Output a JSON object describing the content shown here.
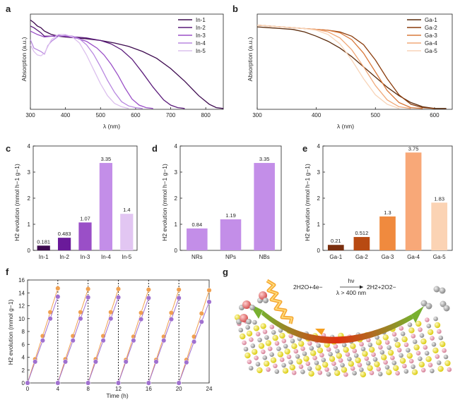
{
  "panel_letters": [
    "a",
    "b",
    "c",
    "d",
    "e",
    "f",
    "g"
  ],
  "chart_data": [
    {
      "id": "a",
      "type": "line",
      "xlabel": "λ (nm)",
      "ylabel": "Absorption (a.u.)",
      "xlim": [
        300,
        850
      ],
      "xticks": [
        300,
        400,
        500,
        600,
        700,
        800
      ],
      "ylim": [
        0,
        1.12
      ],
      "yticks_shown": false,
      "legend": "top-right",
      "series": [
        {
          "name": "In-1",
          "color": "#3d0a4f",
          "x": [
            300,
            310,
            320,
            330,
            340,
            350,
            360,
            380,
            400,
            430,
            460,
            500,
            540,
            580,
            620,
            660,
            700,
            740,
            780,
            810,
            830,
            850
          ],
          "y": [
            1.05,
            1.02,
            0.98,
            0.96,
            0.92,
            0.9,
            0.88,
            0.86,
            0.85,
            0.84,
            0.83,
            0.81,
            0.78,
            0.74,
            0.68,
            0.6,
            0.48,
            0.33,
            0.16,
            0.06,
            0.02,
            0.01
          ]
        },
        {
          "name": "In-2",
          "color": "#5a1a7a",
          "x": [
            300,
            310,
            320,
            330,
            340,
            350,
            360,
            380,
            400,
            430,
            460,
            500,
            530,
            560,
            590,
            620,
            650,
            680,
            700,
            720,
            740
          ],
          "y": [
            0.98,
            0.96,
            0.93,
            0.9,
            0.86,
            0.86,
            0.86,
            0.86,
            0.86,
            0.85,
            0.84,
            0.81,
            0.77,
            0.7,
            0.59,
            0.43,
            0.26,
            0.11,
            0.05,
            0.02,
            0.01
          ]
        },
        {
          "name": "In-3",
          "color": "#9a4fc7",
          "x": [
            300,
            320,
            340,
            360,
            380,
            400,
            430,
            460,
            490,
            510,
            530,
            550,
            570,
            590,
            610,
            630,
            650
          ],
          "y": [
            0.92,
            0.88,
            0.85,
            0.86,
            0.87,
            0.86,
            0.84,
            0.8,
            0.72,
            0.64,
            0.53,
            0.4,
            0.25,
            0.12,
            0.05,
            0.02,
            0.01
          ]
        },
        {
          "name": "In-4",
          "color": "#b988e0",
          "x": [
            300,
            310,
            320,
            330,
            340,
            350,
            360,
            380,
            400,
            420,
            440,
            460,
            480,
            500,
            520,
            540,
            560,
            580,
            600,
            620
          ],
          "y": [
            0.82,
            0.72,
            0.7,
            0.68,
            0.65,
            0.75,
            0.8,
            0.86,
            0.87,
            0.86,
            0.83,
            0.76,
            0.65,
            0.5,
            0.34,
            0.2,
            0.09,
            0.04,
            0.02,
            0.01
          ]
        },
        {
          "name": "In-5",
          "color": "#dcc0ee",
          "x": [
            300,
            310,
            320,
            330,
            340,
            350,
            360,
            380,
            400,
            420,
            440,
            460,
            480,
            500,
            520,
            540,
            560,
            580
          ],
          "y": [
            0.76,
            0.68,
            0.64,
            0.63,
            0.66,
            0.74,
            0.82,
            0.88,
            0.88,
            0.85,
            0.78,
            0.64,
            0.47,
            0.3,
            0.16,
            0.07,
            0.03,
            0.01
          ]
        }
      ]
    },
    {
      "id": "b",
      "type": "line",
      "xlabel": "λ (nm)",
      "ylabel": "Absorption (a.u.)",
      "xlim": [
        300,
        630
      ],
      "xticks": [
        300,
        400,
        500,
        600
      ],
      "ylim": [
        0,
        1.12
      ],
      "yticks_shown": false,
      "legend": "top-right",
      "series": [
        {
          "name": "Ga-1",
          "color": "#5a2a0a",
          "x": [
            300,
            320,
            340,
            360,
            380,
            400,
            420,
            440,
            460,
            480,
            500,
            520,
            540,
            560,
            580,
            600,
            620
          ],
          "y": [
            0.97,
            0.96,
            0.95,
            0.94,
            0.91,
            0.86,
            0.8,
            0.72,
            0.62,
            0.5,
            0.38,
            0.26,
            0.16,
            0.08,
            0.03,
            0.01,
            0.01
          ]
        },
        {
          "name": "Ga-2",
          "color": "#8a3c0c",
          "x": [
            300,
            320,
            340,
            360,
            380,
            400,
            420,
            440,
            460,
            480,
            500,
            520,
            540,
            560,
            580,
            600
          ],
          "y": [
            0.99,
            0.98,
            0.97,
            0.96,
            0.95,
            0.94,
            0.93,
            0.91,
            0.86,
            0.76,
            0.58,
            0.36,
            0.17,
            0.06,
            0.02,
            0.01
          ]
        },
        {
          "name": "Ga-3",
          "color": "#d9783a",
          "x": [
            300,
            320,
            340,
            360,
            380,
            400,
            420,
            440,
            460,
            480,
            500,
            520,
            540,
            560,
            580
          ],
          "y": [
            0.99,
            0.98,
            0.97,
            0.96,
            0.95,
            0.94,
            0.93,
            0.9,
            0.82,
            0.66,
            0.44,
            0.22,
            0.08,
            0.02,
            0.01
          ]
        },
        {
          "name": "Ga-4",
          "color": "#f0a878",
          "x": [
            300,
            320,
            340,
            360,
            380,
            400,
            420,
            440,
            460,
            480,
            500,
            520,
            540,
            560
          ],
          "y": [
            0.99,
            0.98,
            0.97,
            0.96,
            0.95,
            0.94,
            0.91,
            0.84,
            0.7,
            0.5,
            0.28,
            0.11,
            0.03,
            0.01
          ]
        },
        {
          "name": "Ga-5",
          "color": "#f8d4b8",
          "x": [
            300,
            320,
            340,
            360,
            380,
            400,
            420,
            440,
            460,
            480,
            500,
            520,
            540
          ],
          "y": [
            0.99,
            0.98,
            0.97,
            0.96,
            0.95,
            0.93,
            0.88,
            0.77,
            0.58,
            0.36,
            0.17,
            0.06,
            0.01
          ]
        }
      ]
    },
    {
      "id": "c",
      "type": "bar",
      "ylabel": "H2 evolution (mmol h−1 g−1)",
      "ylim": [
        0,
        4
      ],
      "yticks": [
        0,
        1,
        2,
        3,
        4
      ],
      "categories": [
        "In-1",
        "In-2",
        "In-3",
        "In-4",
        "In-5"
      ],
      "values": [
        0.181,
        0.483,
        1.07,
        3.35,
        1.4
      ],
      "value_labels": [
        "0.181",
        "0.483",
        "1.07",
        "3.35",
        "1.4"
      ],
      "colors": [
        "#3d0a4f",
        "#6a1a9a",
        "#9a4fc7",
        "#c38ee8",
        "#e2c6f2"
      ]
    },
    {
      "id": "d",
      "type": "bar",
      "ylabel": "H2 evolution (mmol h−1 g−1)",
      "ylim": [
        0,
        4
      ],
      "yticks": [
        0,
        1,
        2,
        3,
        4
      ],
      "categories": [
        "NRs",
        "NPs",
        "NBs"
      ],
      "values": [
        0.84,
        1.19,
        3.35
      ],
      "value_labels": [
        "0.84",
        "1.19",
        "3.35"
      ],
      "colors": [
        "#c38ee8",
        "#c38ee8",
        "#c38ee8"
      ]
    },
    {
      "id": "e",
      "type": "bar",
      "ylabel": "H2 evolution (mmol h−1 g−1)",
      "ylim": [
        0,
        4
      ],
      "yticks": [
        0,
        1,
        2,
        3,
        4
      ],
      "categories": [
        "Ga-1",
        "Ga-2",
        "Ga-3",
        "Ga-4",
        "Ga-5"
      ],
      "values": [
        0.21,
        0.512,
        1.3,
        3.75,
        1.83
      ],
      "value_labels": [
        "0.21",
        "0.512",
        "1.3",
        "3.75",
        "1.83"
      ],
      "colors": [
        "#7a2e0e",
        "#b84a12",
        "#f08a3e",
        "#f8a878",
        "#fbd3b4"
      ]
    },
    {
      "id": "f",
      "type": "scatter",
      "xlabel": "Time (h)",
      "ylabel": "H2 evolution (mmol g−1)",
      "xlim": [
        0,
        24
      ],
      "xticks": [
        0,
        4,
        8,
        12,
        16,
        20,
        24
      ],
      "ylim": [
        0,
        16
      ],
      "yticks": [
        0,
        2,
        4,
        6,
        8,
        10,
        12,
        14,
        16
      ],
      "cycle_dividers": [
        4,
        8,
        12,
        16,
        20
      ],
      "series": [
        {
          "color": "#f0a050",
          "x": [
            0,
            1,
            2,
            3,
            4,
            4,
            5,
            6,
            7,
            8,
            8,
            9,
            10,
            11,
            12,
            12,
            13,
            14,
            15,
            16,
            16,
            17,
            18,
            19,
            20,
            20,
            21,
            22,
            23,
            24
          ],
          "y": [
            0,
            3.7,
            7.3,
            11,
            14.7,
            0,
            3.7,
            7.3,
            11,
            14.6,
            0,
            3.7,
            7.3,
            11,
            14.6,
            0,
            3.6,
            7.2,
            10.9,
            14.5,
            0,
            3.6,
            7.2,
            10.9,
            14.5,
            0,
            3.6,
            7.2,
            10.8,
            14.4
          ]
        },
        {
          "color": "#a070d0",
          "x": [
            0,
            1,
            2,
            3,
            4,
            4,
            5,
            6,
            7,
            8,
            8,
            9,
            10,
            11,
            12,
            12,
            13,
            14,
            15,
            16,
            16,
            17,
            18,
            19,
            20,
            20,
            21,
            22,
            23,
            24
          ],
          "y": [
            0,
            3.3,
            6.6,
            10,
            13.4,
            0,
            3.3,
            6.6,
            10,
            13.3,
            0,
            3.3,
            6.6,
            10,
            13.3,
            0,
            3.3,
            6.6,
            9.9,
            13.2,
            0,
            3.3,
            6.6,
            9.9,
            13.2,
            0,
            3.2,
            6.4,
            9.5,
            12.6
          ]
        }
      ]
    }
  ],
  "schematic": {
    "reaction_left": "2H2O+4e−",
    "reaction_right": "2H2+2O2−",
    "arrow_top": "hν",
    "arrow_bottom": "λ > 400 nm"
  }
}
